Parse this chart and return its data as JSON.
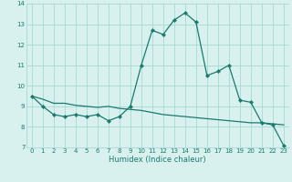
{
  "xlabel": "Humidex (Indice chaleur)",
  "x_values": [
    0,
    1,
    2,
    3,
    4,
    5,
    6,
    7,
    8,
    9,
    10,
    11,
    12,
    13,
    14,
    15,
    16,
    17,
    18,
    19,
    20,
    21,
    22,
    23
  ],
  "y_main": [
    9.5,
    9.0,
    8.6,
    8.5,
    8.6,
    8.5,
    8.6,
    8.3,
    8.5,
    9.0,
    11.0,
    12.7,
    12.5,
    13.2,
    13.55,
    13.1,
    10.5,
    10.7,
    11.0,
    9.3,
    9.2,
    8.2,
    8.1,
    7.1
  ],
  "y_trend": [
    9.5,
    9.35,
    9.15,
    9.15,
    9.05,
    9.0,
    8.95,
    9.0,
    8.9,
    8.85,
    8.8,
    8.7,
    8.6,
    8.55,
    8.5,
    8.45,
    8.4,
    8.35,
    8.3,
    8.25,
    8.2,
    8.2,
    8.15,
    8.1
  ],
  "ylim": [
    7,
    14
  ],
  "xlim": [
    -0.5,
    23.5
  ],
  "yticks": [
    7,
    8,
    9,
    10,
    11,
    12,
    13,
    14
  ],
  "xticks": [
    0,
    1,
    2,
    3,
    4,
    5,
    6,
    7,
    8,
    9,
    10,
    11,
    12,
    13,
    14,
    15,
    16,
    17,
    18,
    19,
    20,
    21,
    22,
    23
  ],
  "line_color": "#1a7a6e",
  "bg_color": "#d8f0ee",
  "grid_color": "#a8d8d4",
  "marker": "D",
  "marker_size": 2.2,
  "line_width": 0.9,
  "tick_fontsize": 5.0,
  "xlabel_fontsize": 6.0
}
